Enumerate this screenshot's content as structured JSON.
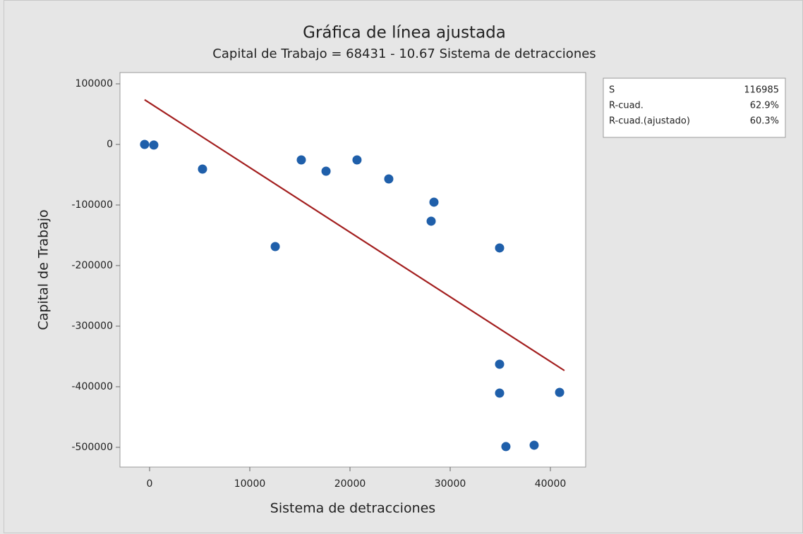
{
  "chart_data": {
    "type": "scatter",
    "title": "Gráfica de línea ajustada",
    "subtitle": "Capital de Trabajo = 68431 - 10.67 Sistema de detracciones",
    "x_label": "Sistema de detracciones",
    "y_label": "Capital de Trabajo",
    "x": [
      -500,
      420,
      5280,
      12540,
      15140,
      17610,
      20700,
      23870,
      28100,
      28380,
      34930,
      34930,
      34930,
      35560,
      38380,
      40920
    ],
    "series": [
      {
        "name": "Capital de Trabajo",
        "color": "#1f5faa",
        "values": [
          0,
          -1000,
          -40700,
          -168600,
          -25600,
          -44200,
          -25600,
          -57000,
          -126700,
          -95300,
          -170900,
          -362800,
          -410500,
          -498800,
          -496500,
          -409300
        ]
      }
    ],
    "fit_line": {
      "color": "#a31f1f",
      "x": [
        -500,
        41400
      ],
      "values": [
        73800,
        -373300
      ]
    },
    "xlim": [
      -2958,
      43521
    ],
    "ylim": [
      -532600,
      118600
    ],
    "xticks": [
      0,
      10000,
      20000,
      30000,
      40000
    ],
    "yticks": [
      100000,
      0,
      -100000,
      -200000,
      -300000,
      -400000,
      -500000
    ],
    "grid": false,
    "stats": [
      [
        "S",
        "116985"
      ],
      [
        "R-cuad.",
        "62.9%"
      ],
      [
        "R-cuad.(ajustado)",
        "60.3%"
      ]
    ]
  }
}
